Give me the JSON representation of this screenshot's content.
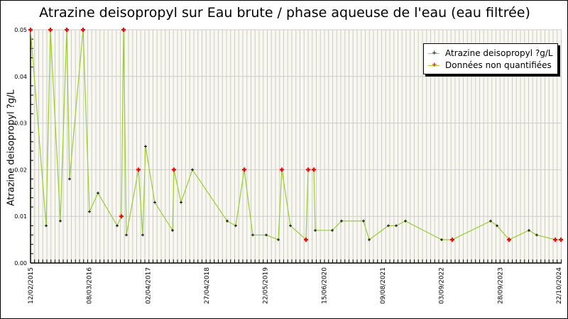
{
  "chart_data": {
    "type": "line",
    "title": "Atrazine deisopropyl sur Eau brute / phase aqueuse de l'eau (eau filtrée)",
    "xlabel": "",
    "ylabel": "Atrazine deisopropyl ?g/L",
    "ylim": [
      0,
      0.05
    ],
    "yticks": [
      "0.00",
      "0.01",
      "0.02",
      "0.03",
      "0.04",
      "0.05"
    ],
    "xticks": [
      "12/02/2015",
      "08/03/2016",
      "02/04/2017",
      "27/04/2018",
      "22/05/2019",
      "15/06/2020",
      "09/08/2021",
      "03/09/2022",
      "28/09/2023",
      "22/10/2024"
    ],
    "grid": true,
    "legend_position": "top-right",
    "legend": [
      "Atrazine deisopropyl ?g/L",
      "Données non quantifiées"
    ],
    "series": [
      {
        "name": "Atrazine deisopropyl ?g/L",
        "color": "#9acd32",
        "points": [
          {
            "px": 42,
            "v": 0.05,
            "nq": true
          },
          {
            "px": 64,
            "v": 0.008,
            "nq": false
          },
          {
            "px": 70,
            "v": 0.05,
            "nq": true
          },
          {
            "px": 84,
            "v": 0.009,
            "nq": false
          },
          {
            "px": 93,
            "v": 0.05,
            "nq": true
          },
          {
            "px": 97,
            "v": 0.018,
            "nq": false
          },
          {
            "px": 116,
            "v": 0.05,
            "nq": true
          },
          {
            "px": 125,
            "v": 0.011,
            "nq": false
          },
          {
            "px": 137,
            "v": 0.015,
            "nq": false
          },
          {
            "px": 164,
            "v": 0.008,
            "nq": false
          },
          {
            "px": 170,
            "v": 0.01,
            "nq": true
          },
          {
            "px": 173,
            "v": 0.05,
            "nq": true
          },
          {
            "px": 177,
            "v": 0.006,
            "nq": false
          },
          {
            "px": 194,
            "v": 0.02,
            "nq": true
          },
          {
            "px": 200,
            "v": 0.006,
            "nq": false
          },
          {
            "px": 204,
            "v": 0.025,
            "nq": false
          },
          {
            "px": 217,
            "v": 0.013,
            "nq": false
          },
          {
            "px": 242,
            "v": 0.007,
            "nq": false
          },
          {
            "px": 244,
            "v": 0.02,
            "nq": true
          },
          {
            "px": 254,
            "v": 0.013,
            "nq": false
          },
          {
            "px": 270,
            "v": 0.02,
            "nq": false
          },
          {
            "px": 319,
            "v": 0.009,
            "nq": false
          },
          {
            "px": 331,
            "v": 0.008,
            "nq": false
          },
          {
            "px": 343,
            "v": 0.02,
            "nq": true
          },
          {
            "px": 355,
            "v": 0.006,
            "nq": false
          },
          {
            "px": 374,
            "v": 0.006,
            "nq": false
          },
          {
            "px": 391,
            "v": 0.005,
            "nq": false
          },
          {
            "px": 396,
            "v": 0.02,
            "nq": true
          },
          {
            "px": 408,
            "v": 0.008,
            "nq": false
          },
          {
            "px": 430,
            "v": 0.005,
            "nq": true
          },
          {
            "px": 433,
            "v": 0.02,
            "nq": true
          },
          {
            "px": 441,
            "v": 0.02,
            "nq": true
          },
          {
            "px": 443,
            "v": 0.007,
            "nq": false
          },
          {
            "px": 467,
            "v": 0.007,
            "nq": false
          },
          {
            "px": 480,
            "v": 0.009,
            "nq": false
          },
          {
            "px": 511,
            "v": 0.009,
            "nq": false
          },
          {
            "px": 519,
            "v": 0.005,
            "nq": false
          },
          {
            "px": 546,
            "v": 0.008,
            "nq": false
          },
          {
            "px": 557,
            "v": 0.008,
            "nq": false
          },
          {
            "px": 570,
            "v": 0.009,
            "nq": false
          },
          {
            "px": 621,
            "v": 0.005,
            "nq": false
          },
          {
            "px": 636,
            "v": 0.005,
            "nq": true
          },
          {
            "px": 690,
            "v": 0.009,
            "nq": false
          },
          {
            "px": 699,
            "v": 0.008,
            "nq": false
          },
          {
            "px": 716,
            "v": 0.005,
            "nq": true
          },
          {
            "px": 744,
            "v": 0.007,
            "nq": false
          },
          {
            "px": 755,
            "v": 0.006,
            "nq": false
          },
          {
            "px": 781,
            "v": 0.005,
            "nq": true
          },
          {
            "px": 789,
            "v": 0.005,
            "nq": true
          }
        ]
      }
    ]
  },
  "colors": {
    "line": "#9acd32",
    "marker_quantified": "#000000",
    "marker_non_quantified": "#ff0000",
    "plot_bg": "#f8f8f0",
    "grid": "#cccccc"
  }
}
